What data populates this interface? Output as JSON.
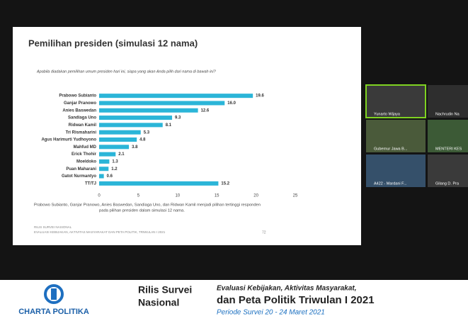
{
  "slide": {
    "title": "Pemilihan presiden (simulasi 12 nama)",
    "question": "Apabila diadakan pemilihan umum presiden hari ini, siapa yang akan Anda pilih dari nama di bawah ini?",
    "note": [
      "Prabowo Subianto, Ganjar Pranowo, Anies Baswedan, Sandiaga Uno, dan Ridwan Kamil menjadi pilihan tertinggi responden",
      "pada pilihan presiden dalam simulasi 12 nama."
    ],
    "footer": [
      "RILIS SURVEI NASIONAL",
      "EVALUASI KEBIJAKAN, AKTIVITAS MASYARAKAT DAN PETA POLITIK, TRIWULAN I 2021"
    ],
    "page_number": 72
  },
  "chart_data": {
    "type": "hbar",
    "categories": [
      "Prabowo Subianto",
      "Ganjar Pranowo",
      "Anies Baswedan",
      "Sandiaga Uno",
      "Ridwan Kamil",
      "Tri Rismaharini",
      "Agus Harimurti Yudhoyono",
      "Mahfud MD",
      "Erick Thohir",
      "Moeldoko",
      "Puan Maharani",
      "Gatot Nurmantyo",
      "TT/TJ"
    ],
    "values": [
      19.6,
      16.0,
      12.6,
      9.3,
      8.1,
      5.3,
      4.8,
      3.8,
      2.1,
      1.3,
      1.2,
      0.6,
      15.2
    ],
    "value_labels": [
      "19.6",
      "16.0",
      "12.6",
      "9.3",
      "8.1",
      "5.3",
      "4.8",
      "3.8",
      "2.1",
      "1.3",
      "1.2",
      "0.6",
      "15.2"
    ],
    "color": "#2bb5d8",
    "xlim": [
      0,
      25
    ],
    "xticks": [
      0,
      5,
      10,
      15,
      20,
      25
    ],
    "grid": false
  },
  "participants": [
    "Yunarto Wijaya",
    "Nachrudin Na",
    "Gubernur Jawa B...",
    "MENTERI KES",
    "A422 - Mardani F...",
    "Gilang D. Pra"
  ],
  "banner": {
    "logo": "CHARTA POLITIKA",
    "heading": [
      "Rilis Survei",
      "Nasional"
    ],
    "lines": [
      "Evaluasi Kebijakan, Aktivitas Masyarakat,",
      "dan Peta Politik Triwulan I 2021"
    ],
    "period": "Periode Survei 20 - 24 Maret 2021"
  }
}
